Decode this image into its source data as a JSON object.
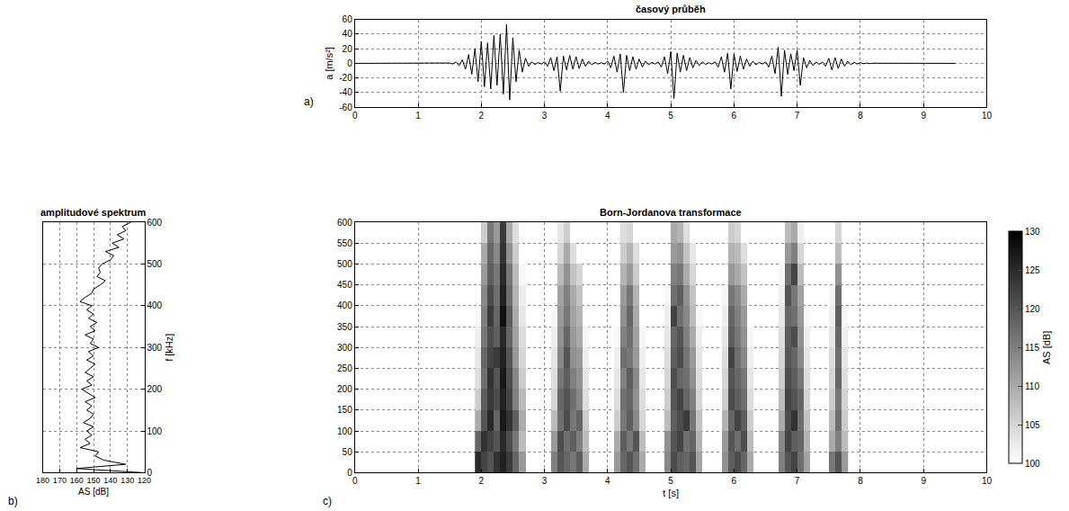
{
  "chart_data": [
    {
      "type": "line",
      "panel_label": "a)",
      "title": "časový průběh",
      "ylabel": "a [m/s²]",
      "color": "#000000",
      "grid": true,
      "xlim": [
        0,
        10
      ],
      "xticks": [
        0,
        1,
        2,
        3,
        4,
        5,
        6,
        7,
        8,
        9,
        10
      ],
      "ylim": [
        -60,
        60
      ],
      "yticks": [
        -60,
        -40,
        -20,
        0,
        20,
        40,
        60
      ],
      "x": [
        0,
        1,
        1.45,
        1.5,
        1.55,
        1.6,
        1.65,
        1.7,
        1.75,
        1.8,
        1.85,
        1.9,
        1.95,
        2,
        2.05,
        2.1,
        2.15,
        2.2,
        2.25,
        2.3,
        2.35,
        2.4,
        2.45,
        2.5,
        2.55,
        2.6,
        2.65,
        2.7,
        2.75,
        2.8,
        2.85,
        2.9,
        2.95,
        3,
        3.05,
        3.1,
        3.15,
        3.2,
        3.25,
        3.3,
        3.35,
        3.4,
        3.45,
        3.5,
        3.55,
        3.6,
        3.65,
        3.7,
        3.75,
        3.8,
        3.85,
        3.9,
        3.95,
        4,
        4.05,
        4.1,
        4.15,
        4.2,
        4.25,
        4.3,
        4.35,
        4.4,
        4.45,
        4.5,
        4.55,
        4.6,
        4.65,
        4.7,
        4.75,
        4.8,
        4.85,
        4.9,
        4.95,
        5,
        5.05,
        5.1,
        5.15,
        5.2,
        5.25,
        5.3,
        5.35,
        5.4,
        5.45,
        5.5,
        5.55,
        5.6,
        5.65,
        5.7,
        5.75,
        5.8,
        5.85,
        5.9,
        5.95,
        6,
        6.05,
        6.1,
        6.15,
        6.2,
        6.25,
        6.3,
        6.35,
        6.4,
        6.45,
        6.5,
        6.55,
        6.6,
        6.65,
        6.7,
        6.75,
        6.8,
        6.85,
        6.9,
        6.95,
        7,
        7.05,
        7.1,
        7.15,
        7.2,
        7.25,
        7.3,
        7.35,
        7.4,
        7.45,
        7.5,
        7.55,
        7.6,
        7.65,
        7.7,
        7.75,
        7.8,
        7.85,
        7.9,
        7.95,
        8,
        8.05,
        8.1,
        8.15,
        8.2,
        9.5
      ],
      "values": [
        0,
        0.2,
        -0.3,
        0.5,
        -1,
        2,
        -3,
        5,
        -8,
        12,
        -15,
        20,
        -25,
        30,
        -32,
        28,
        -35,
        38,
        -30,
        40,
        -42,
        53,
        -50,
        35,
        -25,
        18,
        -12,
        7,
        -4,
        2,
        -1.5,
        1,
        -1,
        2,
        -4,
        8,
        -10,
        9,
        -38,
        10,
        -9,
        11,
        -8,
        9,
        -7,
        6,
        -4,
        3,
        -2,
        1.5,
        -1,
        1,
        -1,
        3,
        -6,
        10,
        -12,
        13,
        -40,
        11,
        -10,
        9,
        -8,
        6,
        -5,
        3,
        -2,
        1.5,
        -1,
        2,
        -5,
        9,
        -14,
        16,
        -48,
        14,
        -12,
        11,
        -10,
        8,
        -6,
        4,
        -3,
        2,
        -1.5,
        1,
        -1,
        2,
        -5,
        9,
        -12,
        14,
        -35,
        13,
        -11,
        10,
        -8,
        6,
        -4,
        3,
        -2,
        1.5,
        -1,
        2,
        -5,
        10,
        -14,
        22,
        -45,
        18,
        -15,
        13,
        -10,
        18,
        -30,
        8,
        -6,
        4,
        -3,
        2,
        -1.5,
        2,
        -4,
        7,
        -9,
        8,
        -7,
        6,
        -4,
        3,
        -2,
        1.5,
        -1,
        1,
        -0.5,
        0.5,
        -0.3,
        0.2,
        0
      ]
    },
    {
      "type": "line",
      "panel_label": "b)",
      "title": "amplitudové spektrum",
      "xlabel": "AS [dB]",
      "ylabel": "f [kHz]",
      "color": "#000000",
      "grid": true,
      "xlim": [
        180,
        120
      ],
      "xticks": [
        180,
        170,
        160,
        150,
        140,
        130,
        120
      ],
      "ylim": [
        0,
        600
      ],
      "yticks": [
        0,
        100,
        200,
        300,
        400,
        500,
        600
      ],
      "x": [
        121,
        160,
        131,
        144,
        149,
        147,
        158,
        152,
        155,
        151,
        154,
        150,
        156,
        152,
        150,
        154,
        151,
        155,
        149,
        153,
        157,
        151,
        154,
        150,
        155,
        152,
        149,
        154,
        150,
        153,
        147,
        152,
        150,
        155,
        149,
        152,
        148,
        153,
        150,
        154,
        151,
        158,
        155,
        151,
        150,
        146,
        143,
        148,
        146,
        147,
        145,
        140,
        138,
        143,
        135,
        139,
        132,
        136,
        131,
        133,
        128
      ],
      "y": [
        0,
        10,
        20,
        30,
        40,
        50,
        60,
        70,
        80,
        90,
        100,
        110,
        120,
        130,
        140,
        150,
        160,
        170,
        180,
        190,
        200,
        210,
        220,
        230,
        240,
        250,
        260,
        270,
        280,
        290,
        300,
        310,
        320,
        330,
        340,
        350,
        360,
        370,
        380,
        390,
        400,
        410,
        420,
        430,
        440,
        450,
        460,
        470,
        480,
        490,
        500,
        510,
        520,
        530,
        540,
        550,
        560,
        570,
        580,
        590,
        600
      ]
    },
    {
      "type": "heatmap",
      "panel_label": "c)",
      "title": "Born-Jordanova transformace",
      "xlabel": "t [s]",
      "grid": true,
      "xlim": [
        0,
        10
      ],
      "xticks": [
        0,
        1,
        2,
        3,
        4,
        5,
        6,
        7,
        8,
        9,
        10
      ],
      "ylim": [
        0,
        600
      ],
      "yticks": [
        0,
        50,
        100,
        150,
        200,
        250,
        300,
        350,
        400,
        450,
        500,
        550,
        600
      ],
      "colorbar": {
        "title": "AS [dB]",
        "range": [
          100,
          130
        ],
        "ticks": [
          100,
          105,
          110,
          115,
          120,
          125,
          130
        ]
      },
      "x": [
        1.95,
        2.05,
        2.15,
        2.25,
        2.35,
        2.45,
        2.55,
        2.65,
        2.75,
        2.85,
        2.95,
        3.05,
        3.15,
        3.25,
        3.35,
        3.45,
        3.55,
        3.65,
        3.75,
        3.85,
        3.95,
        4.05,
        4.15,
        4.25,
        4.35,
        4.45,
        4.55,
        4.65,
        4.75,
        4.85,
        4.95,
        5.05,
        5.15,
        5.25,
        5.35,
        5.45,
        5.55,
        5.65,
        5.75,
        5.85,
        5.95,
        6.05,
        6.15,
        6.25,
        6.35,
        6.45,
        6.55,
        6.65,
        6.75,
        6.85,
        6.95,
        7.05,
        7.15,
        7.25,
        7.35,
        7.45,
        7.55,
        7.65,
        7.75
      ],
      "y": [
        25,
        75,
        125,
        175,
        225,
        275,
        325,
        375,
        425,
        475,
        525,
        575
      ],
      "z": [
        [
          125,
          122,
          120,
          124,
          126,
          123,
          118,
          112,
          null,
          null,
          null,
          null,
          115,
          120,
          118,
          116,
          119,
          110,
          null,
          null,
          null,
          null,
          112,
          118,
          120,
          117,
          110,
          null,
          null,
          null,
          114,
          121,
          119,
          118,
          120,
          111,
          null,
          null,
          null,
          113,
          119,
          121,
          118,
          110,
          null,
          null,
          null,
          null,
          115,
          120,
          122,
          117,
          111,
          null,
          null,
          null,
          116,
          120,
          112
        ],
        [
          118,
          124,
          122,
          120,
          125,
          121,
          116,
          108,
          null,
          null,
          null,
          null,
          112,
          121,
          117,
          119,
          115,
          108,
          null,
          null,
          null,
          null,
          110,
          119,
          116,
          120,
          108,
          null,
          null,
          null,
          113,
          120,
          122,
          117,
          118,
          109,
          null,
          null,
          null,
          112,
          120,
          117,
          121,
          108,
          null,
          null,
          null,
          null,
          114,
          122,
          119,
          118,
          109,
          null,
          null,
          null,
          110,
          115,
          108
        ],
        [
          110,
          120,
          125,
          118,
          127,
          124,
          119,
          110,
          null,
          null,
          null,
          null,
          108,
          117,
          121,
          116,
          118,
          106,
          null,
          null,
          null,
          null,
          106,
          116,
          119,
          114,
          105,
          null,
          null,
          null,
          108,
          119,
          121,
          123,
          116,
          107,
          null,
          null,
          null,
          109,
          118,
          122,
          119,
          106,
          null,
          null,
          null,
          null,
          110,
          121,
          124,
          117,
          107,
          null,
          null,
          null,
          108,
          117,
          106
        ],
        [
          106,
          119,
          123,
          121,
          126,
          122,
          115,
          108,
          null,
          null,
          null,
          null,
          105,
          118,
          120,
          117,
          114,
          104,
          null,
          null,
          null,
          null,
          104,
          117,
          118,
          113,
          104,
          null,
          null,
          null,
          106,
          120,
          122,
          118,
          115,
          105,
          null,
          null,
          null,
          106,
          121,
          119,
          117,
          104,
          null,
          null,
          null,
          null,
          108,
          122,
          120,
          118,
          105,
          null,
          null,
          null,
          106,
          116,
          105
        ],
        [
          104,
          117,
          124,
          120,
          127,
          121,
          114,
          106,
          null,
          null,
          null,
          null,
          104,
          116,
          119,
          115,
          113,
          103,
          null,
          null,
          null,
          null,
          103,
          115,
          119,
          114,
          103,
          null,
          null,
          null,
          105,
          121,
          118,
          117,
          113,
          104,
          null,
          null,
          null,
          105,
          120,
          118,
          116,
          103,
          null,
          null,
          null,
          null,
          106,
          121,
          119,
          116,
          104,
          null,
          null,
          null,
          105,
          118,
          104
        ],
        [
          103,
          118,
          122,
          123,
          126,
          120,
          112,
          105,
          null,
          null,
          null,
          null,
          103,
          114,
          120,
          113,
          112,
          102,
          null,
          null,
          null,
          null,
          102,
          117,
          116,
          112,
          102,
          null,
          null,
          null,
          104,
          119,
          121,
          116,
          112,
          103,
          null,
          null,
          null,
          104,
          122,
          117,
          114,
          102,
          null,
          null,
          null,
          null,
          105,
          120,
          118,
          114,
          103,
          null,
          null,
          null,
          104,
          117,
          103
        ],
        [
          102,
          116,
          121,
          119,
          125,
          118,
          111,
          104,
          null,
          null,
          null,
          null,
          102,
          113,
          118,
          112,
          110,
          101,
          null,
          null,
          null,
          null,
          101,
          115,
          117,
          111,
          101,
          null,
          null,
          null,
          103,
          118,
          120,
          115,
          110,
          102,
          null,
          null,
          null,
          103,
          119,
          116,
          113,
          101,
          null,
          null,
          null,
          null,
          104,
          119,
          121,
          113,
          102,
          null,
          null,
          null,
          103,
          118,
          102
        ],
        [
          101,
          115,
          123,
          118,
          128,
          119,
          110,
          103,
          null,
          null,
          null,
          null,
          101,
          112,
          116,
          111,
          109,
          null,
          null,
          null,
          null,
          null,
          null,
          113,
          118,
          110,
          null,
          null,
          null,
          null,
          102,
          122,
          117,
          114,
          108,
          101,
          null,
          null,
          null,
          102,
          118,
          115,
          112,
          null,
          null,
          null,
          null,
          null,
          103,
          118,
          117,
          112,
          101,
          null,
          null,
          null,
          102,
          119,
          101
        ],
        [
          null,
          114,
          121,
          117,
          126,
          117,
          109,
          102,
          null,
          null,
          null,
          null,
          null,
          111,
          115,
          110,
          107,
          null,
          null,
          null,
          null,
          null,
          null,
          112,
          116,
          109,
          null,
          null,
          null,
          null,
          101,
          117,
          119,
          113,
          107,
          null,
          null,
          null,
          null,
          101,
          116,
          114,
          110,
          null,
          null,
          null,
          null,
          null,
          102,
          120,
          116,
          111,
          null,
          null,
          null,
          null,
          101,
          117,
          null
        ],
        [
          null,
          112,
          119,
          116,
          125,
          116,
          108,
          101,
          null,
          null,
          null,
          null,
          null,
          108,
          113,
          107,
          105,
          null,
          null,
          null,
          null,
          null,
          null,
          109,
          112,
          106,
          null,
          null,
          null,
          null,
          null,
          115,
          116,
          110,
          105,
          null,
          null,
          null,
          null,
          null,
          112,
          110,
          107,
          null,
          null,
          null,
          null,
          null,
          101,
          117,
          122,
          108,
          null,
          null,
          null,
          null,
          null,
          113,
          null
        ],
        [
          null,
          110,
          118,
          114,
          124,
          113,
          106,
          null,
          null,
          null,
          null,
          null,
          null,
          105,
          110,
          104,
          null,
          null,
          null,
          null,
          null,
          null,
          null,
          106,
          109,
          104,
          null,
          null,
          null,
          null,
          null,
          112,
          113,
          107,
          103,
          null,
          null,
          null,
          null,
          null,
          109,
          108,
          104,
          null,
          null,
          null,
          null,
          null,
          null,
          112,
          115,
          105,
          null,
          null,
          null,
          null,
          null,
          108,
          null
        ],
        [
          null,
          106,
          116,
          112,
          123,
          110,
          104,
          null,
          null,
          null,
          null,
          null,
          null,
          103,
          106,
          null,
          null,
          null,
          null,
          null,
          null,
          null,
          null,
          104,
          105,
          null,
          null,
          null,
          null,
          null,
          null,
          110,
          109,
          104,
          null,
          null,
          null,
          null,
          null,
          null,
          106,
          105,
          null,
          null,
          null,
          null,
          null,
          null,
          null,
          108,
          110,
          102,
          null,
          null,
          null,
          null,
          null,
          105,
          null
        ]
      ]
    }
  ]
}
